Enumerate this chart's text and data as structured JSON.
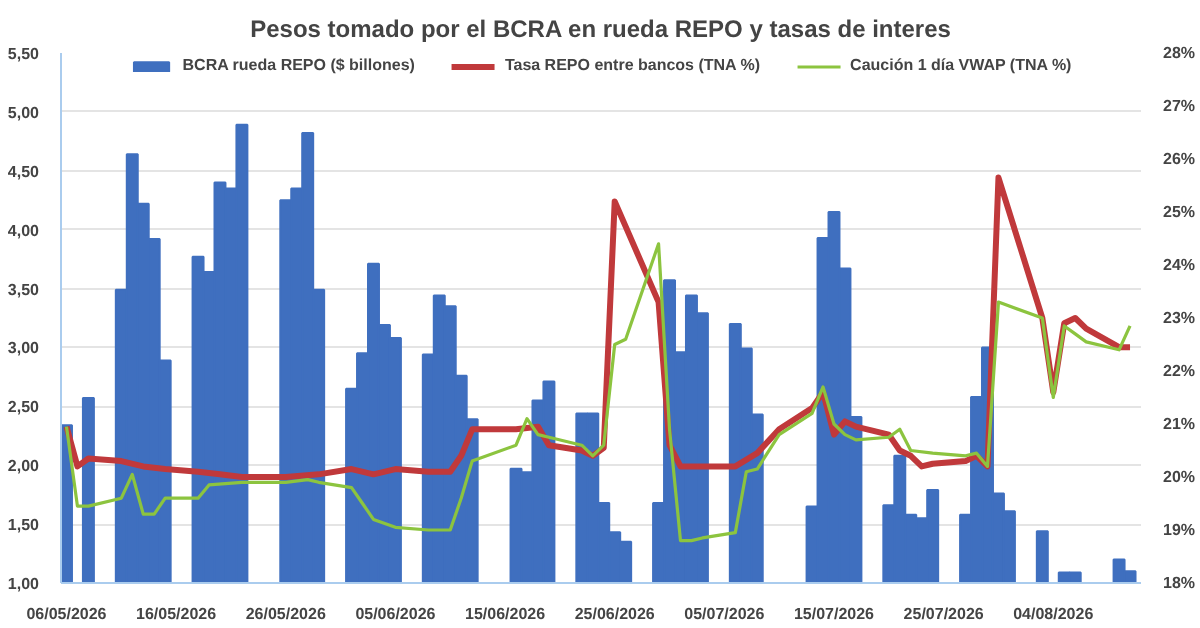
{
  "chart_data": {
    "type": "bar",
    "title": "Pesos tomado por el BCRA en rueda REPO y tasas de interes",
    "xlim": [
      "2026-05-05T12:00",
      "2026-08-12"
    ],
    "xticks": [
      {
        "value": "2026-05-06",
        "label": "06/05/2026"
      },
      {
        "value": "2026-05-16",
        "label": "16/05/2026"
      },
      {
        "value": "2026-05-26",
        "label": "26/05/2026"
      },
      {
        "value": "2026-06-05",
        "label": "05/06/2026"
      },
      {
        "value": "2026-06-15",
        "label": "15/06/2026"
      },
      {
        "value": "2026-06-25",
        "label": "25/06/2026"
      },
      {
        "value": "2026-07-05",
        "label": "05/07/2026"
      },
      {
        "value": "2026-07-15",
        "label": "15/07/2026"
      },
      {
        "value": "2026-07-25",
        "label": "25/07/2026"
      },
      {
        "value": "2026-08-04",
        "label": "04/08/2026"
      }
    ],
    "ylim": [
      1.0,
      5.5
    ],
    "yticks": [
      {
        "value": 1.0,
        "label": "1,00"
      },
      {
        "value": 1.5,
        "label": "1,50"
      },
      {
        "value": 2.0,
        "label": "2,00"
      },
      {
        "value": 2.5,
        "label": "2,50"
      },
      {
        "value": 3.0,
        "label": "3,00"
      },
      {
        "value": 3.5,
        "label": "3,50"
      },
      {
        "value": 4.0,
        "label": "4,00"
      },
      {
        "value": 4.5,
        "label": "4,50"
      },
      {
        "value": 5.0,
        "label": "5,00"
      },
      {
        "value": 5.5,
        "label": "5,50"
      }
    ],
    "y2lim": [
      18,
      28
    ],
    "y2ticks": [
      {
        "value": 18,
        "label": "18%"
      },
      {
        "value": 19,
        "label": "19%"
      },
      {
        "value": 20,
        "label": "20%"
      },
      {
        "value": 21,
        "label": "21%"
      },
      {
        "value": 22,
        "label": "22%"
      },
      {
        "value": 23,
        "label": "23%"
      },
      {
        "value": 24,
        "label": "24%"
      },
      {
        "value": 25,
        "label": "25%"
      },
      {
        "value": 26,
        "label": "26%"
      },
      {
        "value": 27,
        "label": "27%"
      },
      {
        "value": 28,
        "label": "28%"
      }
    ],
    "grid": "y",
    "legend": "top",
    "series": [
      {
        "name": "BCRA rueda REPO ($ billones)",
        "color": "#3f6fbf",
        "x": [
          "2026-05-06",
          "2026-05-08",
          "2026-05-11",
          "2026-05-12",
          "2026-05-13",
          "2026-05-14",
          "2026-05-15",
          "2026-05-18",
          "2026-05-19",
          "2026-05-20",
          "2026-05-21",
          "2026-05-22",
          "2026-05-26",
          "2026-05-27",
          "2026-05-28",
          "2026-05-29",
          "2026-06-01",
          "2026-06-02",
          "2026-06-03",
          "2026-06-04",
          "2026-06-05",
          "2026-06-08",
          "2026-06-09",
          "2026-06-10",
          "2026-06-11",
          "2026-06-12",
          "2026-06-16",
          "2026-06-17",
          "2026-06-18",
          "2026-06-19",
          "2026-06-22",
          "2026-06-23",
          "2026-06-24",
          "2026-06-25",
          "2026-06-26",
          "2026-06-29",
          "2026-06-30",
          "2026-07-01",
          "2026-07-02",
          "2026-07-03",
          "2026-07-06",
          "2026-07-07",
          "2026-07-08",
          "2026-07-13",
          "2026-07-14",
          "2026-07-15",
          "2026-07-16",
          "2026-07-17",
          "2026-07-20",
          "2026-07-21",
          "2026-07-22",
          "2026-07-23",
          "2026-07-24",
          "2026-07-27",
          "2026-07-28",
          "2026-07-29",
          "2026-07-30",
          "2026-07-31",
          "2026-08-03",
          "2026-08-05",
          "2026-08-06",
          "2026-08-10",
          "2026-08-11"
        ],
        "values": [
          2.34,
          2.57,
          3.49,
          4.64,
          4.22,
          3.92,
          2.89,
          3.77,
          3.64,
          4.4,
          4.35,
          4.89,
          4.25,
          4.35,
          4.82,
          3.49,
          2.65,
          2.95,
          3.71,
          3.19,
          3.08,
          2.94,
          3.44,
          3.35,
          2.76,
          2.39,
          1.97,
          1.94,
          2.55,
          2.71,
          2.44,
          2.44,
          1.68,
          1.43,
          1.35,
          1.68,
          3.57,
          2.96,
          3.44,
          3.29,
          3.2,
          2.99,
          2.43,
          1.65,
          3.93,
          4.15,
          3.67,
          2.41,
          1.66,
          2.08,
          1.58,
          1.55,
          1.79,
          1.58,
          2.58,
          3.0,
          1.76,
          1.61,
          1.44,
          1.09,
          1.09,
          1.2,
          1.1
        ]
      },
      {
        "name": "Tasa REPO entre bancos (TNA %)",
        "type": "line",
        "axis": "y2",
        "color": "#c0393b",
        "x": [
          "2026-05-06",
          "2026-05-07",
          "2026-05-08",
          "2026-05-11",
          "2026-05-13",
          "2026-05-15",
          "2026-05-18",
          "2026-05-20",
          "2026-05-22",
          "2026-05-26",
          "2026-05-29",
          "2026-06-01",
          "2026-06-03",
          "2026-06-05",
          "2026-06-08",
          "2026-06-10",
          "2026-06-11",
          "2026-06-12",
          "2026-06-16",
          "2026-06-18",
          "2026-06-19",
          "2026-06-22",
          "2026-06-23",
          "2026-06-24",
          "2026-06-25",
          "2026-06-29",
          "2026-06-30",
          "2026-07-01",
          "2026-07-03",
          "2026-07-06",
          "2026-07-08",
          "2026-07-10",
          "2026-07-13",
          "2026-07-14",
          "2026-07-15",
          "2026-07-16",
          "2026-07-17",
          "2026-07-20",
          "2026-07-21",
          "2026-07-22",
          "2026-07-23",
          "2026-07-24",
          "2026-07-27",
          "2026-07-28",
          "2026-07-29",
          "2026-07-30",
          "2026-08-03",
          "2026-08-04",
          "2026-08-05",
          "2026-08-06",
          "2026-08-07",
          "2026-08-10",
          "2026-08-11"
        ],
        "values": [
          20.95,
          20.2,
          20.35,
          20.3,
          20.2,
          20.15,
          20.1,
          20.05,
          20.0,
          20.0,
          20.05,
          20.15,
          20.05,
          20.15,
          20.1,
          20.1,
          20.4,
          20.9,
          20.9,
          20.95,
          20.6,
          20.5,
          20.4,
          20.55,
          25.2,
          23.3,
          20.6,
          20.2,
          20.2,
          20.2,
          20.45,
          20.9,
          21.3,
          21.6,
          20.8,
          21.05,
          20.95,
          20.8,
          20.5,
          20.4,
          20.2,
          20.25,
          20.3,
          20.4,
          20.2,
          25.65,
          23.0,
          21.6,
          22.9,
          23.0,
          22.8,
          22.45,
          22.45
        ]
      },
      {
        "name": "Caución 1 día VWAP (TNA %)",
        "type": "line",
        "axis": "y2",
        "color": "#8cc43f",
        "x": [
          "2026-05-06",
          "2026-05-07",
          "2026-05-08",
          "2026-05-11",
          "2026-05-12",
          "2026-05-13",
          "2026-05-14",
          "2026-05-15",
          "2026-05-18",
          "2026-05-19",
          "2026-05-22",
          "2026-05-26",
          "2026-05-28",
          "2026-05-29",
          "2026-06-01",
          "2026-06-02",
          "2026-06-03",
          "2026-06-05",
          "2026-06-08",
          "2026-06-10",
          "2026-06-11",
          "2026-06-12",
          "2026-06-16",
          "2026-06-17",
          "2026-06-18",
          "2026-06-19",
          "2026-06-22",
          "2026-06-23",
          "2026-06-24",
          "2026-06-25",
          "2026-06-26",
          "2026-06-29",
          "2026-06-30",
          "2026-07-01",
          "2026-07-02",
          "2026-07-03",
          "2026-07-06",
          "2026-07-07",
          "2026-07-08",
          "2026-07-10",
          "2026-07-13",
          "2026-07-14",
          "2026-07-15",
          "2026-07-16",
          "2026-07-17",
          "2026-07-20",
          "2026-07-21",
          "2026-07-22",
          "2026-07-24",
          "2026-07-27",
          "2026-07-28",
          "2026-07-29",
          "2026-07-30",
          "2026-08-03",
          "2026-08-04",
          "2026-08-05",
          "2026-08-06",
          "2026-08-07",
          "2026-08-10",
          "2026-08-11"
        ],
        "values": [
          20.95,
          19.45,
          19.45,
          19.6,
          20.05,
          19.3,
          19.3,
          19.6,
          19.6,
          19.85,
          19.9,
          19.9,
          19.95,
          19.9,
          19.8,
          19.5,
          19.2,
          19.05,
          19.0,
          19.0,
          19.6,
          20.3,
          20.6,
          21.1,
          20.8,
          20.75,
          20.6,
          20.4,
          20.6,
          22.5,
          22.6,
          24.4,
          20.9,
          18.8,
          18.8,
          18.85,
          18.95,
          20.1,
          20.15,
          20.8,
          21.2,
          21.7,
          21.0,
          20.8,
          20.7,
          20.75,
          20.9,
          20.5,
          20.45,
          20.4,
          20.45,
          20.2,
          23.3,
          23.0,
          21.5,
          22.85,
          22.7,
          22.55,
          22.4,
          22.85
        ]
      }
    ]
  }
}
